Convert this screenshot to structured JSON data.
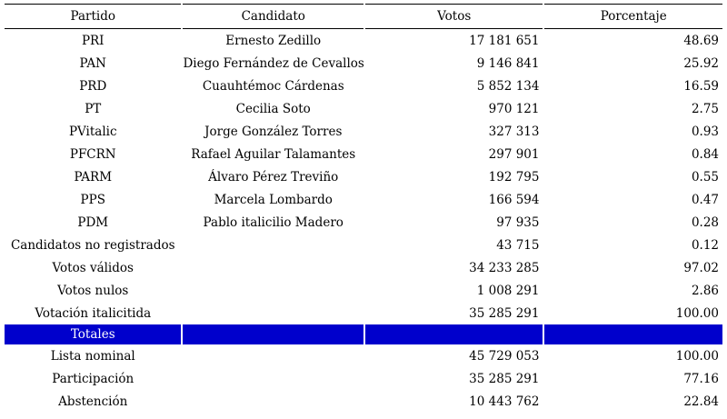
{
  "table": {
    "headers": [
      "Partido",
      "Candidato",
      "Votos",
      "Porcentaje"
    ],
    "rows": [
      {
        "party": "PRI",
        "candidate": "Ernesto Zedillo",
        "votes": "17 181 651",
        "pct": "48.69"
      },
      {
        "party": "PAN",
        "candidate": "Diego Fernández de Cevallos",
        "votes": "9 146 841",
        "pct": "25.92"
      },
      {
        "party": "PRD",
        "candidate": "Cuauhtémoc Cárdenas",
        "votes": "5 852 134",
        "pct": "16.59"
      },
      {
        "party": "PT",
        "candidate": "Cecilia Soto",
        "votes": "970 121",
        "pct": "2.75"
      },
      {
        "party": "PVitalic",
        "candidate": "Jorge González Torres",
        "votes": "327 313",
        "pct": "0.93"
      },
      {
        "party": "PFCRN",
        "candidate": "Rafael Aguilar Talamantes",
        "votes": "297 901",
        "pct": "0.84"
      },
      {
        "party": "PARM",
        "candidate": "Álvaro Pérez Treviño",
        "votes": "192 795",
        "pct": "0.55"
      },
      {
        "party": "PPS",
        "candidate": "Marcela Lombardo",
        "votes": "166 594",
        "pct": "0.47"
      },
      {
        "party": "PDM",
        "candidate": "Pablo italicilio Madero",
        "votes": "97 935",
        "pct": "0.28"
      },
      {
        "party": "Candidatos no registrados",
        "candidate": "",
        "votes": "43 715",
        "pct": "0.12"
      },
      {
        "party": "Votos válidos",
        "candidate": "",
        "votes": "34 233 285",
        "pct": "97.02"
      },
      {
        "party": "Votos nulos",
        "candidate": "",
        "votes": "1 008 291",
        "pct": "2.86"
      },
      {
        "party": "Votación italicitida",
        "candidate": "",
        "votes": "35 285 291",
        "pct": "100.00"
      }
    ],
    "totals_label": "Totales",
    "summary_rows": [
      {
        "label": "Lista nominal",
        "votes": "45 729 053",
        "pct": "100.00"
      },
      {
        "label": "Participación",
        "votes": "35 285 291",
        "pct": "77.16"
      },
      {
        "label": "Abstención",
        "votes": "10 443 762",
        "pct": "22.84"
      }
    ]
  },
  "colors": {
    "totals_background": "#0000cc",
    "totals_text": "#ffffff",
    "rule": "#000000"
  }
}
